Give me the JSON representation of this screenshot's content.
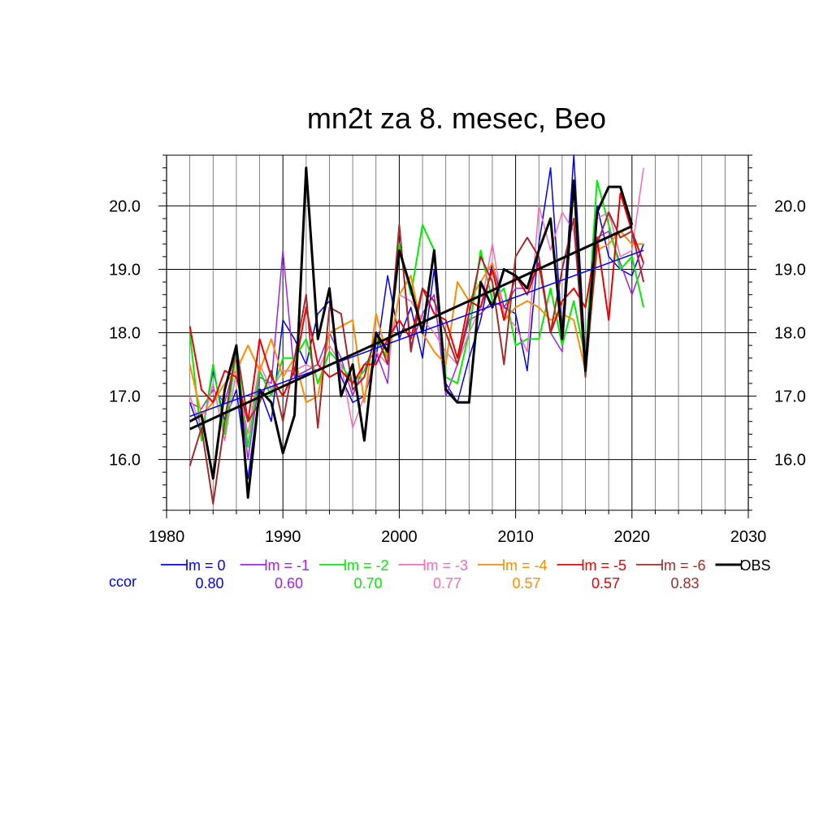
{
  "chart_data": {
    "type": "line",
    "title": "mn2t za 8. mesec, Beo",
    "xlabel": "",
    "ylabel": "",
    "xlim": [
      1980,
      2030
    ],
    "ylim": [
      15.2,
      20.8
    ],
    "x_ticks": [
      "1980",
      "1990",
      "2000",
      "2010",
      "2020",
      "2030"
    ],
    "y_ticks": [
      "16.0",
      "17.0",
      "18.0",
      "19.0",
      "20.0"
    ],
    "grid": true,
    "legend_position": "bottom",
    "ccor_label": "ccor",
    "x": [
      1982,
      1983,
      1984,
      1985,
      1986,
      1987,
      1988,
      1989,
      1990,
      1991,
      1992,
      1993,
      1994,
      1995,
      1996,
      1997,
      1998,
      1999,
      2000,
      2001,
      2002,
      2003,
      2004,
      2005,
      2006,
      2007,
      2008,
      2009,
      2010,
      2011,
      2012,
      2013,
      2014,
      2015,
      2016,
      2017,
      2018,
      2019,
      2020,
      2021
    ],
    "series": [
      {
        "name": "lm = 0",
        "ccor": "0.80",
        "color": "#0000ff",
        "width": 1.5,
        "values": [
          16.9,
          16.4,
          17.4,
          16.6,
          17.1,
          15.7,
          17.1,
          16.6,
          18.2,
          17.9,
          17.5,
          18.3,
          18.5,
          17.3,
          16.9,
          17.0,
          17.6,
          18.9,
          17.9,
          18.4,
          17.6,
          19.0,
          17.2,
          16.9,
          17.6,
          18.2,
          19.1,
          18.4,
          18.3,
          17.4,
          19.4,
          20.6,
          18.0,
          20.8,
          17.6,
          20.0,
          19.2,
          19.0,
          18.9,
          19.4
        ]
      },
      {
        "name": "lm = -1",
        "ccor": "0.60",
        "color": "#a020f0",
        "width": 1.5,
        "values": [
          16.9,
          16.8,
          17.1,
          16.9,
          17.6,
          16.0,
          17.3,
          17.2,
          19.3,
          17.3,
          17.4,
          17.5,
          18.0,
          17.6,
          17.0,
          17.5,
          17.7,
          17.2,
          19.7,
          17.8,
          18.3,
          18.6,
          17.0,
          17.5,
          18.2,
          18.3,
          18.5,
          18.4,
          18.7,
          18.7,
          19.1,
          18.0,
          17.7,
          20.3,
          17.6,
          19.5,
          19.6,
          19.1,
          18.6,
          19.1
        ]
      },
      {
        "name": "lm = -2",
        "ccor": "0.70",
        "color": "#00ee00",
        "width": 2,
        "values": [
          18.0,
          16.3,
          17.5,
          16.4,
          17.7,
          16.2,
          17.4,
          17.0,
          17.6,
          17.6,
          17.9,
          17.2,
          17.7,
          17.5,
          17.2,
          17.4,
          17.9,
          17.6,
          19.4,
          18.6,
          19.7,
          19.3,
          17.3,
          17.2,
          18.0,
          19.3,
          18.5,
          18.7,
          17.8,
          17.9,
          17.9,
          18.7,
          17.8,
          18.5,
          17.6,
          20.4,
          19.7,
          19.0,
          19.2,
          18.4
        ]
      },
      {
        "name": "lm = -3",
        "ccor": "0.77",
        "color": "#ff69b4",
        "width": 1.5,
        "values": [
          17.0,
          16.5,
          17.2,
          16.3,
          17.4,
          16.4,
          17.5,
          17.1,
          17.4,
          17.4,
          17.5,
          17.4,
          17.8,
          17.5,
          16.5,
          17.0,
          17.7,
          17.5,
          18.6,
          18.5,
          18.2,
          18.0,
          17.7,
          17.5,
          18.0,
          18.4,
          19.4,
          18.3,
          18.1,
          17.7,
          20.0,
          19.3,
          19.9,
          19.6,
          17.6,
          19.8,
          19.9,
          19.2,
          19.3,
          20.6
        ]
      },
      {
        "name": "lm = -4",
        "ccor": "0.57",
        "color": "#ff8c00",
        "width": 2,
        "values": [
          17.5,
          16.7,
          16.9,
          17.2,
          17.4,
          17.8,
          17.4,
          17.9,
          17.3,
          17.6,
          16.9,
          17.0,
          18.0,
          18.1,
          18.2,
          16.9,
          18.3,
          17.6,
          18.6,
          18.9,
          18.0,
          17.7,
          17.5,
          18.8,
          18.5,
          18.8,
          19.1,
          18.2,
          18.4,
          18.5,
          18.4,
          18.2,
          18.3,
          18.2,
          17.4,
          19.3,
          19.4,
          19.6,
          19.4,
          19.4
        ]
      },
      {
        "name": "lm = -5",
        "ccor": "0.57",
        "color": "#ee0000",
        "width": 2,
        "values": [
          18.1,
          17.1,
          16.9,
          17.4,
          17.3,
          16.6,
          17.9,
          17.3,
          17.0,
          17.4,
          18.4,
          17.5,
          17.3,
          17.4,
          17.2,
          17.5,
          17.5,
          17.9,
          18.2,
          17.9,
          18.7,
          18.3,
          18.2,
          17.6,
          18.5,
          18.4,
          19.0,
          18.2,
          18.9,
          18.6,
          19.1,
          18.0,
          18.5,
          18.7,
          18.4,
          19.5,
          18.2,
          20.2,
          19.6,
          19.1
        ]
      },
      {
        "name": "lm = -6",
        "ccor": "0.83",
        "color": "#a52a2a",
        "width": 2,
        "values": [
          15.9,
          16.5,
          15.3,
          16.6,
          17.8,
          16.6,
          16.9,
          17.4,
          16.6,
          17.6,
          18.6,
          16.5,
          18.4,
          18.3,
          17.1,
          17.3,
          18.0,
          17.5,
          19.7,
          17.7,
          18.7,
          18.5,
          18.0,
          17.5,
          18.3,
          19.2,
          18.8,
          17.5,
          19.2,
          19.5,
          19.2,
          18.0,
          19.0,
          19.8,
          17.3,
          19.4,
          19.9,
          19.5,
          19.6,
          18.8
        ]
      },
      {
        "name": "OBS",
        "ccor": "",
        "color": "#000000",
        "width": 3,
        "values": [
          16.6,
          16.7,
          15.7,
          17.1,
          17.8,
          15.4,
          17.1,
          16.9,
          16.1,
          16.7,
          20.6,
          17.9,
          18.7,
          17.0,
          17.5,
          16.3,
          18.0,
          17.7,
          19.3,
          18.7,
          18.0,
          19.3,
          17.1,
          16.9,
          16.9,
          18.8,
          18.4,
          19.0,
          18.9,
          18.7,
          19.3,
          19.8,
          17.9,
          20.4,
          17.4,
          19.9,
          20.3,
          20.3,
          19.7,
          null
        ]
      }
    ],
    "trend_lines": [
      {
        "series": "lm = 0",
        "color": "#0000ff",
        "width": 1.5,
        "x": [
          1982,
          2021
        ],
        "y": [
          16.68,
          19.3
        ]
      },
      {
        "series": "OBS",
        "color": "#000000",
        "width": 3,
        "x": [
          1982,
          2020
        ],
        "y": [
          16.48,
          19.68
        ]
      }
    ]
  }
}
